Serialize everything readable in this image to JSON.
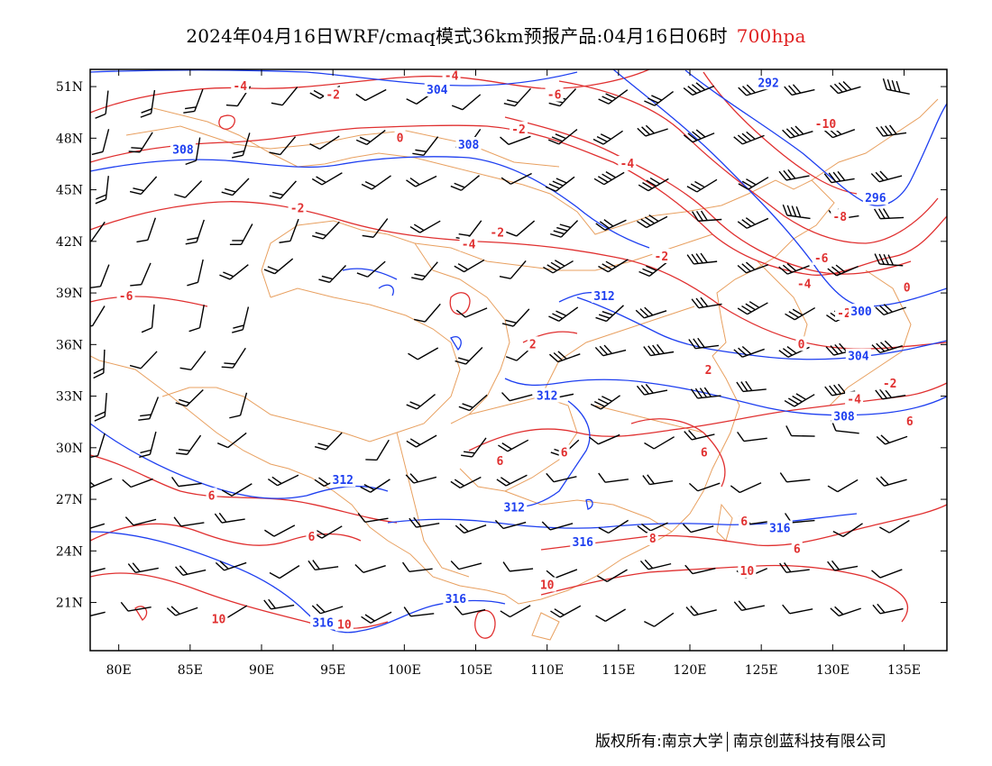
{
  "title": {
    "main": "2024年04月16日WRF/cmaq模式36km预报产品:04月16日06时",
    "level": "700hpa"
  },
  "axes": {
    "lon_labels": [
      "80E",
      "85E",
      "90E",
      "95E",
      "100E",
      "105E",
      "110E",
      "115E",
      "120E",
      "125E",
      "130E",
      "135E"
    ],
    "lon_values": [
      80,
      85,
      90,
      95,
      100,
      105,
      110,
      115,
      120,
      125,
      130,
      135
    ],
    "lat_labels": [
      "51N",
      "48N",
      "45N",
      "42N",
      "39N",
      "36N",
      "33N",
      "30N",
      "27N",
      "24N",
      "21N"
    ],
    "lat_values": [
      51,
      48,
      45,
      42,
      39,
      36,
      33,
      30,
      27,
      24,
      21
    ],
    "lon_range": [
      78,
      138
    ],
    "lat_range": [
      18.2,
      52.0
    ]
  },
  "colors": {
    "height_contour": "#1e3ff0",
    "temperature_contour": "#e03030",
    "boundary": "#e8a060",
    "wind_barb": "#000000"
  },
  "temperature_labels": [
    {
      "text": "-4",
      "lon": 88.5,
      "lat": 51.0
    },
    {
      "text": "-4",
      "lon": 103.3,
      "lat": 51.6
    },
    {
      "text": "-6",
      "lon": 110.5,
      "lat": 50.5
    },
    {
      "text": "-2",
      "lon": 95.0,
      "lat": 50.5
    },
    {
      "text": "-2",
      "lon": 108.0,
      "lat": 48.5
    },
    {
      "text": "0",
      "lon": 99.7,
      "lat": 48.0
    },
    {
      "text": "-4",
      "lon": 115.6,
      "lat": 46.5
    },
    {
      "text": "-10",
      "lon": 129.5,
      "lat": 48.8
    },
    {
      "text": "-2",
      "lon": 92.5,
      "lat": 43.9
    },
    {
      "text": "-2",
      "lon": 106.5,
      "lat": 42.5
    },
    {
      "text": "-4",
      "lon": 104.5,
      "lat": 41.8
    },
    {
      "text": "-8",
      "lon": 130.5,
      "lat": 43.4
    },
    {
      "text": "-2",
      "lon": 118.0,
      "lat": 41.1
    },
    {
      "text": "-6",
      "lon": 129.2,
      "lat": 41.0
    },
    {
      "text": "-4",
      "lon": 128.0,
      "lat": 39.5
    },
    {
      "text": "0",
      "lon": 135.2,
      "lat": 39.3
    },
    {
      "text": "-2",
      "lon": 130.8,
      "lat": 37.8
    },
    {
      "text": "-6",
      "lon": 80.5,
      "lat": 38.8
    },
    {
      "text": "0",
      "lon": 127.8,
      "lat": 36.0
    },
    {
      "text": "2",
      "lon": 109.0,
      "lat": 36.0
    },
    {
      "text": "2",
      "lon": 121.3,
      "lat": 34.5
    },
    {
      "text": "-2",
      "lon": 134.0,
      "lat": 33.7
    },
    {
      "text": "-4",
      "lon": 131.5,
      "lat": 32.8
    },
    {
      "text": "6",
      "lon": 121.0,
      "lat": 29.7
    },
    {
      "text": "6",
      "lon": 106.7,
      "lat": 29.2
    },
    {
      "text": "6",
      "lon": 111.2,
      "lat": 29.7
    },
    {
      "text": "6",
      "lon": 135.4,
      "lat": 31.5
    },
    {
      "text": "6",
      "lon": 86.5,
      "lat": 27.2
    },
    {
      "text": "6",
      "lon": 93.5,
      "lat": 24.8
    },
    {
      "text": "6",
      "lon": 123.8,
      "lat": 25.7
    },
    {
      "text": "6",
      "lon": 127.5,
      "lat": 24.1
    },
    {
      "text": "8",
      "lon": 117.4,
      "lat": 24.7
    },
    {
      "text": "10",
      "lon": 124.0,
      "lat": 22.8
    },
    {
      "text": "10",
      "lon": 110.0,
      "lat": 22.0
    },
    {
      "text": "10",
      "lon": 87.0,
      "lat": 20.0
    },
    {
      "text": "10",
      "lon": 95.8,
      "lat": 19.7
    }
  ],
  "height_labels": [
    {
      "text": "304",
      "lon": 102.3,
      "lat": 50.8
    },
    {
      "text": "292",
      "lon": 125.5,
      "lat": 51.2
    },
    {
      "text": "308",
      "lon": 84.5,
      "lat": 47.3
    },
    {
      "text": "308",
      "lon": 104.5,
      "lat": 47.6
    },
    {
      "text": "296",
      "lon": 133.0,
      "lat": 44.5
    },
    {
      "text": "312",
      "lon": 114.0,
      "lat": 38.8
    },
    {
      "text": "300",
      "lon": 132.0,
      "lat": 37.9
    },
    {
      "text": "304",
      "lon": 131.8,
      "lat": 35.3
    },
    {
      "text": "312",
      "lon": 110.0,
      "lat": 33.0
    },
    {
      "text": "308",
      "lon": 130.8,
      "lat": 31.8
    },
    {
      "text": "312",
      "lon": 95.7,
      "lat": 28.1
    },
    {
      "text": "312",
      "lon": 107.7,
      "lat": 26.5
    },
    {
      "text": "316",
      "lon": 126.3,
      "lat": 25.3
    },
    {
      "text": "316",
      "lon": 112.5,
      "lat": 24.5
    },
    {
      "text": "316",
      "lon": 103.6,
      "lat": 21.2
    },
    {
      "text": "316",
      "lon": 94.3,
      "lat": 19.8
    }
  ],
  "credit": {
    "owner": "版权所有:南京大学",
    "company": "南京创蓝科技有限公司"
  }
}
